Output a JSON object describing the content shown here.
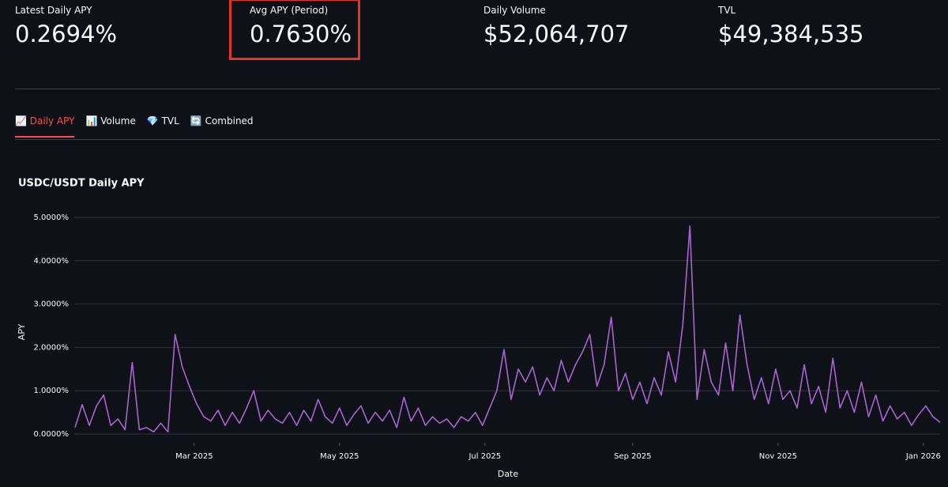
{
  "metrics": [
    {
      "label": "Latest Daily APY",
      "value": "0.2694%"
    },
    {
      "label": "Avg APY (Period)",
      "value": "0.7630%"
    },
    {
      "label": "Daily Volume",
      "value": "$52,064,707"
    },
    {
      "label": "TVL",
      "value": "$49,384,535"
    }
  ],
  "tabs": {
    "items": [
      "📈 Daily APY",
      "📊 Volume",
      "💎 TVL",
      "🔄 Combined"
    ],
    "active": 0
  },
  "chart_data": {
    "type": "line",
    "title": "USDC/USDT Daily APY",
    "x_label": "Date",
    "y_label": "APY",
    "grid": true,
    "x": [
      "2025-01-10",
      "2025-01-13",
      "2025-01-16",
      "2025-01-19",
      "2025-01-22",
      "2025-01-25",
      "2025-01-28",
      "2025-01-31",
      "2025-02-03",
      "2025-02-06",
      "2025-02-09",
      "2025-02-12",
      "2025-02-15",
      "2025-02-18",
      "2025-02-21",
      "2025-02-24",
      "2025-02-27",
      "2025-03-02",
      "2025-03-05",
      "2025-03-08",
      "2025-03-11",
      "2025-03-14",
      "2025-03-17",
      "2025-03-20",
      "2025-03-23",
      "2025-03-26",
      "2025-03-29",
      "2025-04-01",
      "2025-04-04",
      "2025-04-07",
      "2025-04-10",
      "2025-04-13",
      "2025-04-16",
      "2025-04-19",
      "2025-04-22",
      "2025-04-25",
      "2025-04-28",
      "2025-05-01",
      "2025-05-04",
      "2025-05-07",
      "2025-05-10",
      "2025-05-13",
      "2025-05-16",
      "2025-05-19",
      "2025-05-22",
      "2025-05-25",
      "2025-05-28",
      "2025-05-31",
      "2025-06-03",
      "2025-06-06",
      "2025-06-09",
      "2025-06-12",
      "2025-06-15",
      "2025-06-18",
      "2025-06-21",
      "2025-06-24",
      "2025-06-27",
      "2025-06-30",
      "2025-07-03",
      "2025-07-06",
      "2025-07-09",
      "2025-07-12",
      "2025-07-15",
      "2025-07-18",
      "2025-07-21",
      "2025-07-24",
      "2025-07-27",
      "2025-07-30",
      "2025-08-02",
      "2025-08-05",
      "2025-08-08",
      "2025-08-11",
      "2025-08-14",
      "2025-08-17",
      "2025-08-20",
      "2025-08-23",
      "2025-08-26",
      "2025-08-29",
      "2025-09-01",
      "2025-09-04",
      "2025-09-07",
      "2025-09-10",
      "2025-09-13",
      "2025-09-16",
      "2025-09-19",
      "2025-09-22",
      "2025-09-25",
      "2025-09-28",
      "2025-10-01",
      "2025-10-04",
      "2025-10-07",
      "2025-10-10",
      "2025-10-13",
      "2025-10-16",
      "2025-10-19",
      "2025-10-22",
      "2025-10-25",
      "2025-10-28",
      "2025-10-31",
      "2025-11-03",
      "2025-11-06",
      "2025-11-09",
      "2025-11-12",
      "2025-11-15",
      "2025-11-18",
      "2025-11-21",
      "2025-11-24",
      "2025-11-27",
      "2025-11-30",
      "2025-12-03",
      "2025-12-06",
      "2025-12-09",
      "2025-12-12",
      "2025-12-15",
      "2025-12-18",
      "2025-12-21",
      "2025-12-24",
      "2025-12-27",
      "2025-12-30",
      "2026-01-02",
      "2026-01-05",
      "2026-01-08"
    ],
    "series": [
      {
        "name": "APY",
        "color": "#a765cf",
        "values": [
          0.15,
          0.68,
          0.2,
          0.65,
          0.9,
          0.2,
          0.35,
          0.1,
          1.65,
          0.1,
          0.15,
          0.05,
          0.25,
          0.05,
          2.3,
          1.55,
          1.1,
          0.7,
          0.4,
          0.3,
          0.55,
          0.2,
          0.5,
          0.25,
          0.6,
          1.0,
          0.3,
          0.55,
          0.35,
          0.25,
          0.5,
          0.2,
          0.55,
          0.3,
          0.8,
          0.4,
          0.25,
          0.6,
          0.2,
          0.45,
          0.65,
          0.25,
          0.5,
          0.3,
          0.55,
          0.15,
          0.85,
          0.3,
          0.6,
          0.2,
          0.4,
          0.25,
          0.35,
          0.15,
          0.4,
          0.3,
          0.5,
          0.2,
          0.6,
          1.0,
          1.95,
          0.8,
          1.5,
          1.2,
          1.55,
          0.9,
          1.3,
          1.0,
          1.7,
          1.2,
          1.6,
          1.9,
          2.3,
          1.1,
          1.6,
          2.7,
          1.0,
          1.4,
          0.8,
          1.2,
          0.7,
          1.3,
          0.9,
          1.9,
          1.2,
          2.5,
          4.8,
          0.8,
          1.95,
          1.2,
          0.9,
          2.1,
          1.0,
          2.75,
          1.6,
          0.8,
          1.3,
          0.7,
          1.5,
          0.8,
          1.0,
          0.6,
          1.6,
          0.7,
          1.1,
          0.5,
          1.75,
          0.6,
          1.0,
          0.5,
          1.2,
          0.4,
          0.9,
          0.3,
          0.65,
          0.35,
          0.5,
          0.2,
          0.45,
          0.65,
          0.4,
          0.27
        ]
      }
    ],
    "xlim": [
      "2025-01-10",
      "2026-01-08"
    ],
    "xticks": [
      {
        "value": "2025-03-01",
        "label": "Mar 2025"
      },
      {
        "value": "2025-05-01",
        "label": "May 2025"
      },
      {
        "value": "2025-07-01",
        "label": "Jul 2025"
      },
      {
        "value": "2025-09-01",
        "label": "Sep 2025"
      },
      {
        "value": "2025-11-01",
        "label": "Nov 2025"
      },
      {
        "value": "2026-01-01",
        "label": "Jan 2026"
      }
    ],
    "ylim": [
      -0.2,
      5.2
    ],
    "yticks": [
      {
        "value": 0,
        "label": "0.0000%"
      },
      {
        "value": 1,
        "label": "1.0000%"
      },
      {
        "value": 2,
        "label": "2.0000%"
      },
      {
        "value": 3,
        "label": "3.0000%"
      },
      {
        "value": 4,
        "label": "4.0000%"
      },
      {
        "value": 5,
        "label": "5.0000%"
      }
    ]
  }
}
